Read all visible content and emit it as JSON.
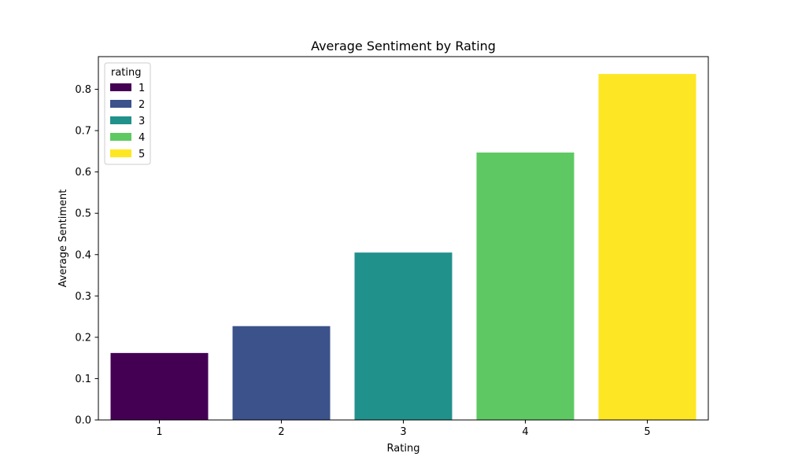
{
  "chart_data": {
    "type": "bar",
    "title": "Average Sentiment by Rating",
    "xlabel": "Rating",
    "ylabel": "Average Sentiment",
    "categories": [
      "1",
      "2",
      "3",
      "4",
      "5"
    ],
    "values": [
      0.162,
      0.227,
      0.405,
      0.647,
      0.837
    ],
    "colors": [
      "#440154",
      "#3b528b",
      "#21918c",
      "#5ec962",
      "#fde725"
    ],
    "ylim": [
      0,
      0.879
    ],
    "yticks": [
      0.0,
      0.1,
      0.2,
      0.3,
      0.4,
      0.5,
      0.6,
      0.7,
      0.8
    ],
    "ytick_labels": [
      "0.0",
      "0.1",
      "0.2",
      "0.3",
      "0.4",
      "0.5",
      "0.6",
      "0.7",
      "0.8"
    ],
    "grid": false,
    "legend": {
      "title": "rating",
      "placement": "top-left",
      "entries": [
        "1",
        "2",
        "3",
        "4",
        "5"
      ]
    }
  }
}
